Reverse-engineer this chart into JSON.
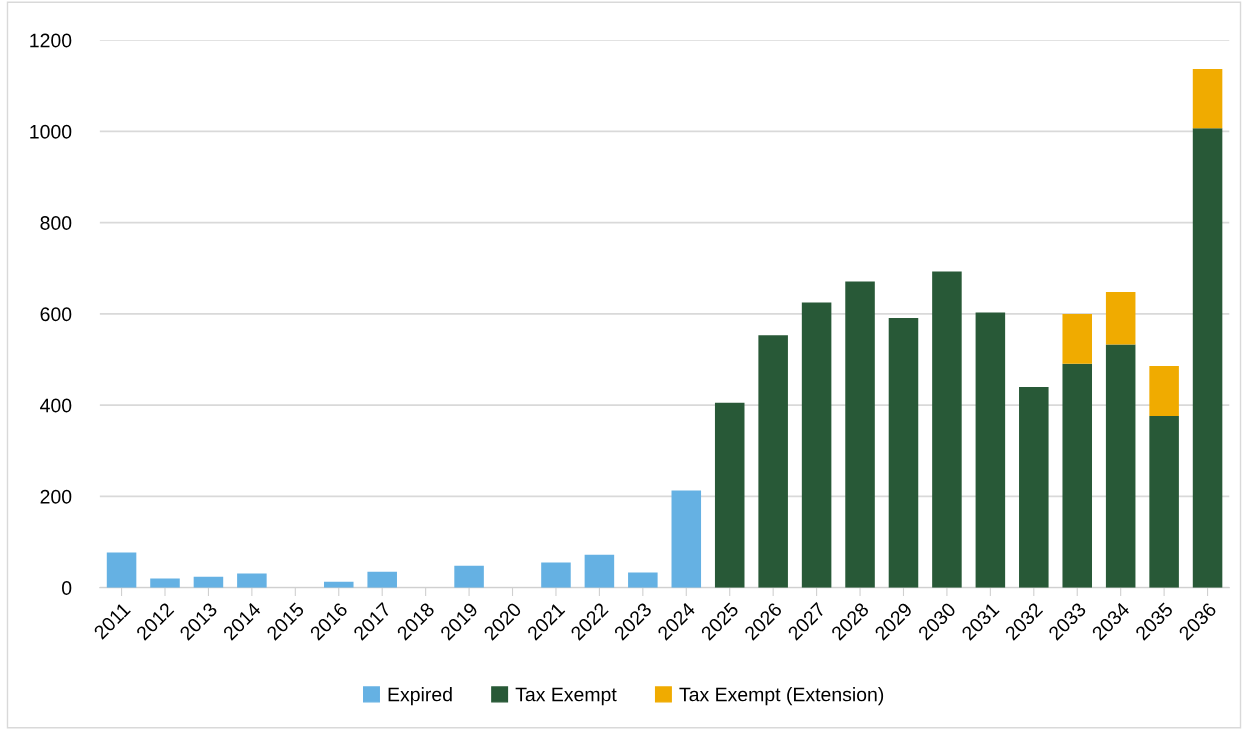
{
  "chart_data": {
    "type": "bar",
    "stacked": true,
    "categories": [
      "2011",
      "2012",
      "2013",
      "2014",
      "2015",
      "2016",
      "2017",
      "2018",
      "2019",
      "2020",
      "2021",
      "2022",
      "2023",
      "2024",
      "2025",
      "2026",
      "2027",
      "2028",
      "2029",
      "2030",
      "2031",
      "2032",
      "2033",
      "2034",
      "2035",
      "2036"
    ],
    "series": [
      {
        "name": "Expired",
        "color": "#65b1e3",
        "values": [
          77,
          20,
          24,
          31,
          0,
          13,
          35,
          0,
          48,
          0,
          55,
          72,
          33,
          213,
          null,
          null,
          null,
          null,
          null,
          null,
          null,
          null,
          null,
          null,
          null,
          null
        ]
      },
      {
        "name": "Tax Exempt",
        "color": "#285937",
        "values": [
          null,
          null,
          null,
          null,
          null,
          null,
          null,
          null,
          null,
          null,
          null,
          null,
          null,
          null,
          405,
          553,
          625,
          671,
          591,
          693,
          603,
          440,
          491,
          533,
          376,
          1007
        ]
      },
      {
        "name": "Tax Exempt (Extension)",
        "color": "#f0ab00",
        "values": [
          null,
          null,
          null,
          null,
          null,
          null,
          null,
          null,
          null,
          null,
          null,
          null,
          null,
          null,
          null,
          null,
          null,
          null,
          null,
          null,
          null,
          null,
          109,
          115,
          110,
          130
        ]
      }
    ],
    "ylim": [
      0,
      1200
    ],
    "yticks": [
      0,
      200,
      400,
      600,
      800,
      1000,
      1200
    ],
    "grid": "y",
    "legend": "bottom"
  }
}
